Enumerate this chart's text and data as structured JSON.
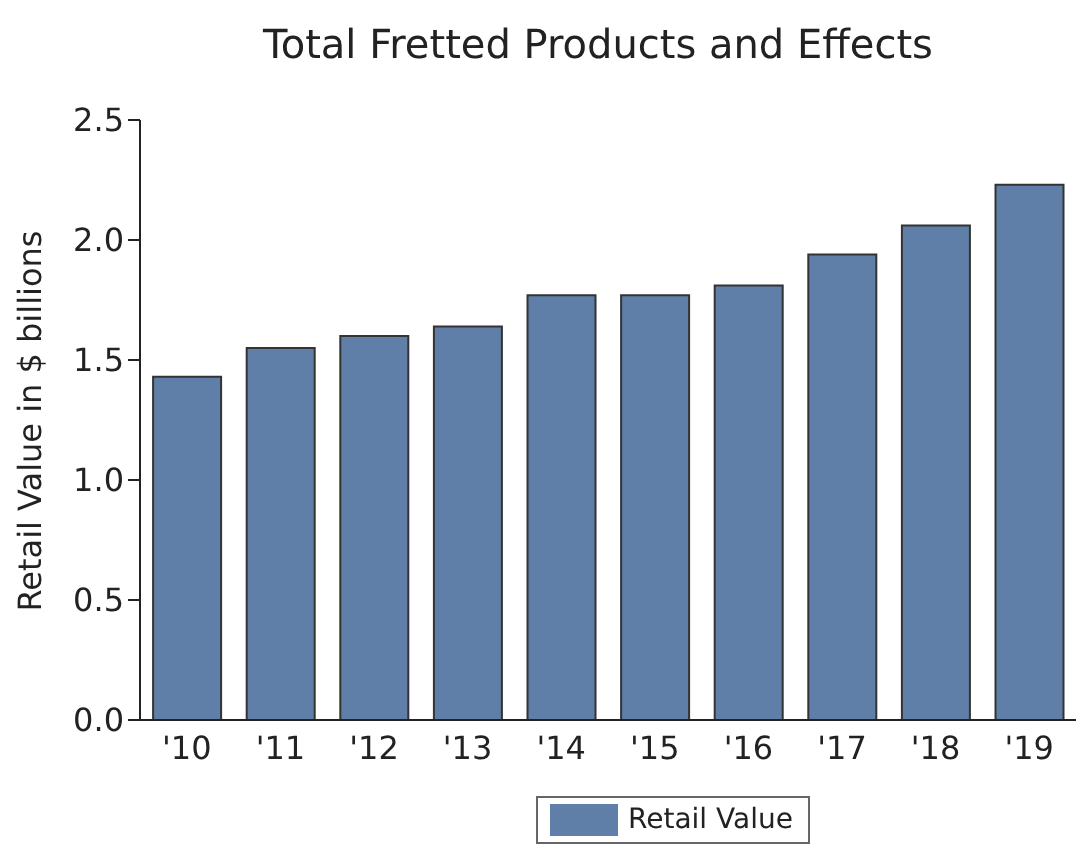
{
  "chart_data": {
    "type": "bar",
    "title": "Total Fretted Products and Effects",
    "ylabel": "Retail Value in $ billions",
    "categories": [
      "'10",
      "'11",
      "'12",
      "'13",
      "'14",
      "'15",
      "'16",
      "'17",
      "'18",
      "'19"
    ],
    "series": [
      {
        "name": "Retail Value",
        "color": "#5f7fa8",
        "values": [
          1.43,
          1.55,
          1.6,
          1.64,
          1.77,
          1.77,
          1.81,
          1.94,
          2.06,
          2.23
        ]
      }
    ],
    "ylim": [
      0,
      2.5
    ],
    "yticks": [
      {
        "value": 0,
        "label": "0.0"
      },
      {
        "value": 0.5,
        "label": "0.5"
      },
      {
        "value": 1,
        "label": "1.0"
      },
      {
        "value": 1.5,
        "label": "1.5"
      },
      {
        "value": 2,
        "label": "2.0"
      },
      {
        "value": 2.5,
        "label": "2.5"
      }
    ],
    "grid": false,
    "legend": "bottom"
  }
}
